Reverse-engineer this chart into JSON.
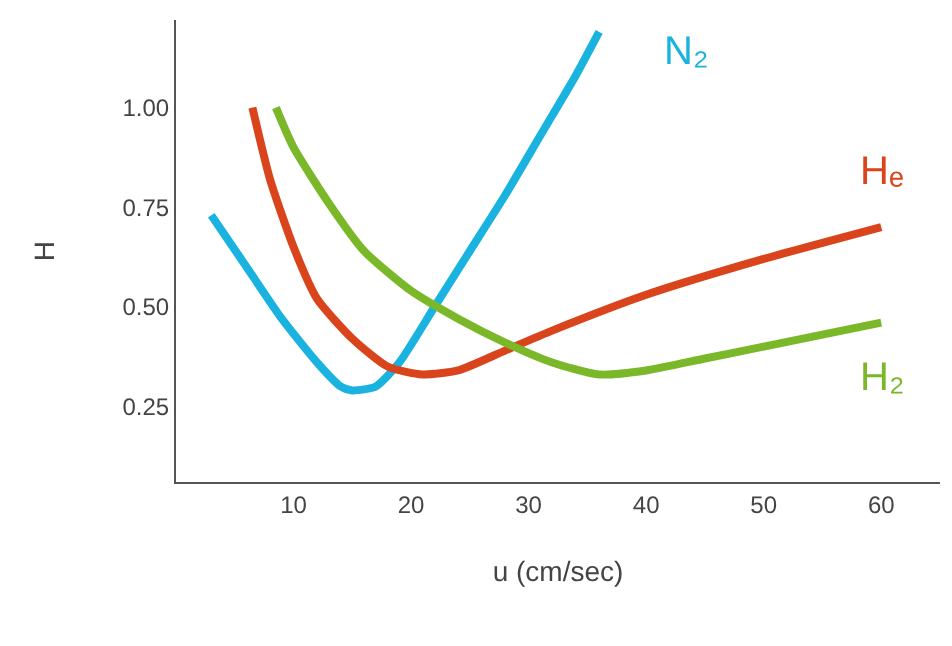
{
  "chart_data": {
    "type": "line",
    "xlabel": "u (cm/sec)",
    "ylabel": "H",
    "xlim": [
      0,
      65
    ],
    "xticks": [
      10,
      20,
      30,
      40,
      50,
      60
    ],
    "ylim": [
      0.06,
      1.22
    ],
    "yticks": [
      {
        "value": 0.25,
        "label": "0.25"
      },
      {
        "value": 0.5,
        "label": "0.50"
      },
      {
        "value": 0.75,
        "label": "0.75"
      },
      {
        "value": 1,
        "label": "1.00"
      }
    ],
    "grid": false,
    "legend": false,
    "marker": "none",
    "line_style": "solid",
    "series": [
      {
        "name": "N₂",
        "color": "#1ab3e0",
        "x": [
          3,
          6,
          9,
          12,
          14,
          15,
          17,
          19,
          22,
          25,
          28,
          31,
          34,
          36
        ],
        "values": [
          0.73,
          0.6,
          0.47,
          0.36,
          0.3,
          0.29,
          0.3,
          0.36,
          0.5,
          0.64,
          0.78,
          0.93,
          1.08,
          1.19
        ]
      },
      {
        "name": "Hₑ",
        "color": "#d9441c",
        "x": [
          6.5,
          8,
          10,
          12,
          15,
          18,
          21,
          24,
          28,
          32,
          40,
          50,
          60
        ],
        "values": [
          1.0,
          0.82,
          0.65,
          0.52,
          0.42,
          0.35,
          0.33,
          0.34,
          0.39,
          0.44,
          0.53,
          0.62,
          0.7
        ]
      },
      {
        "name": "H₂",
        "color": "#7ab829",
        "x": [
          8.5,
          10,
          13,
          16,
          20,
          24,
          28,
          32,
          36,
          40,
          45,
          50,
          55,
          60
        ],
        "values": [
          1.0,
          0.9,
          0.76,
          0.64,
          0.54,
          0.47,
          0.41,
          0.36,
          0.33,
          0.34,
          0.37,
          0.4,
          0.43,
          0.46
        ]
      }
    ]
  }
}
